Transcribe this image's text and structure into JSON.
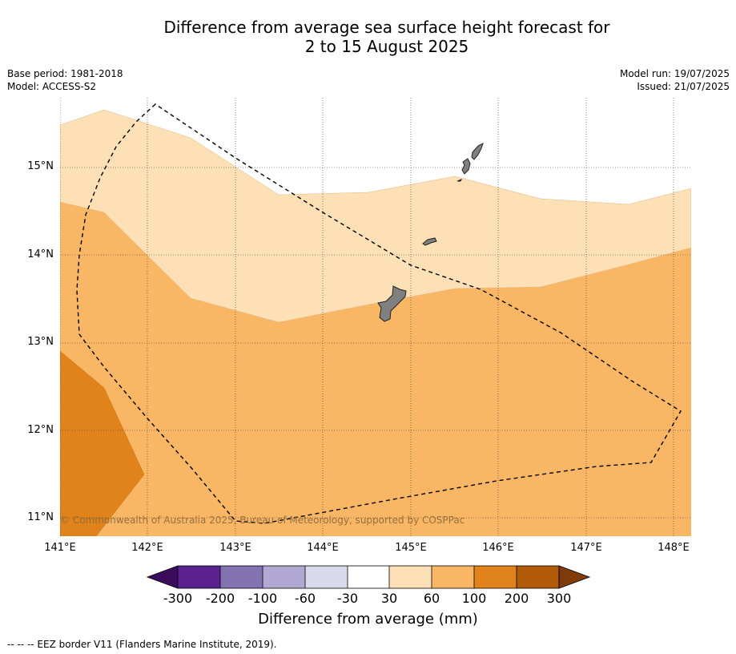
{
  "header": {
    "title_line1": "Difference from average sea surface height forecast for",
    "title_line2": "2 to 15 August 2025",
    "base_period": "Base period: 1981-2018",
    "model": "Model: ACCESS-S2",
    "model_run": "Model run: 19/07/2025",
    "issued": "Issued: 21/07/2025"
  },
  "map": {
    "lat_labels": [
      "15°N",
      "14°N",
      "13°N",
      "12°N",
      "11°N"
    ],
    "lon_labels": [
      "141°E",
      "142°E",
      "143°E",
      "144°E",
      "145°E",
      "146°E",
      "147°E",
      "148°E"
    ],
    "copyright": "© Commonwealth of Australia 2025, Bureau of Meteorology, supported by COSPPac",
    "land_color": "#808080"
  },
  "colorbar": {
    "ticks": [
      "-300",
      "-200",
      "-100",
      "-60",
      "-30",
      "30",
      "60",
      "100",
      "200",
      "300"
    ],
    "colors": [
      "#3b0b5c",
      "#5c2290",
      "#8473b2",
      "#b1a9d3",
      "#d9d9ec",
      "#ffffff",
      "#fde0b5",
      "#f9b664",
      "#e0831a",
      "#b15a08",
      "#7f3b0a"
    ],
    "label": "Difference from average (mm)"
  },
  "footnote": "--  --  -- EEZ border V11 (Flanders Marine Institute, 2019)."
}
